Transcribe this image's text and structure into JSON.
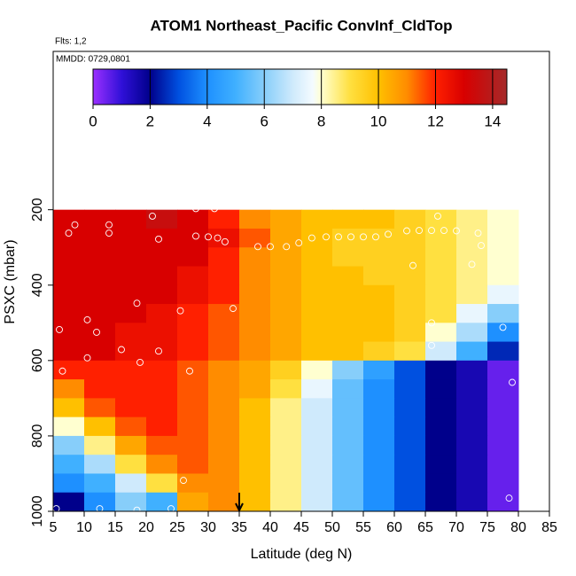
{
  "chart_data": {
    "type": "heatmap",
    "title": "ATOM1 Northeast_Pacific ConvInf_CldTop",
    "annotations": [
      "Flts: 1,2",
      "MMDD: 0729,0801"
    ],
    "x_label": "Latitude (deg N)",
    "y_label": "PSXC (mbar)",
    "xlim": [
      5,
      85
    ],
    "xticks": [
      5,
      10,
      15,
      20,
      25,
      30,
      35,
      40,
      45,
      50,
      55,
      60,
      65,
      70,
      75,
      80,
      85
    ],
    "ylim": [
      1000,
      -220
    ],
    "yticks": [
      200,
      400,
      600,
      800,
      1000
    ],
    "x_edges": [
      5,
      10,
      15,
      20,
      25,
      30,
      35,
      40,
      45,
      50,
      55,
      60,
      65,
      70,
      75,
      80
    ],
    "y_edges": [
      200,
      250,
      300,
      350,
      400,
      450,
      500,
      550,
      600,
      650,
      700,
      750,
      800,
      850,
      900,
      950,
      1000
    ],
    "z": [
      [
        13,
        13,
        13,
        13.5,
        13,
        12,
        11,
        10.5,
        10,
        10,
        10,
        9.5,
        9,
        8.5,
        8
      ],
      [
        13,
        13,
        13,
        13,
        13,
        12.5,
        11.5,
        10.5,
        10,
        9.5,
        9.5,
        9.5,
        9,
        8.5,
        8
      ],
      [
        13,
        13,
        13,
        13,
        13,
        12,
        11,
        10.5,
        10,
        9.5,
        9.5,
        9.5,
        9,
        8.5,
        8
      ],
      [
        13,
        13,
        13,
        13,
        12.5,
        12,
        11,
        10.5,
        10,
        10,
        9.5,
        9.5,
        9,
        8.5,
        8
      ],
      [
        13,
        13,
        13,
        13,
        12.5,
        12,
        11,
        10.5,
        10,
        10,
        10,
        9.5,
        9,
        8.5,
        7.5
      ],
      [
        13,
        13,
        13,
        12.5,
        12,
        11.5,
        11,
        10.5,
        10,
        10,
        10,
        9.5,
        9,
        7.5,
        6
      ],
      [
        13,
        13,
        12.5,
        12.5,
        12,
        11.5,
        11,
        10.5,
        10,
        10,
        10,
        9.5,
        8,
        6.5,
        4
      ],
      [
        13,
        13,
        12.5,
        12.5,
        12,
        11.5,
        11,
        10.5,
        10,
        10,
        9.5,
        9,
        7,
        5,
        2.5
      ],
      [
        12,
        12,
        12,
        12,
        11.5,
        11,
        10.5,
        9.5,
        8,
        6,
        4.5,
        3,
        2,
        1.5,
        0.5
      ],
      [
        11,
        12,
        12,
        12,
        11.5,
        11,
        10.5,
        9,
        7.5,
        5.5,
        4,
        3,
        2,
        1.5,
        0.5
      ],
      [
        10,
        11.5,
        12,
        12,
        11.5,
        11,
        10,
        8.5,
        7,
        5.5,
        4,
        3,
        2,
        1.5,
        0.5
      ],
      [
        8,
        10,
        11.5,
        12,
        11.5,
        11,
        10,
        8.5,
        7,
        5.5,
        4,
        3,
        2,
        1.5,
        0.5
      ],
      [
        6,
        8.5,
        10.5,
        11.5,
        11.5,
        11,
        10,
        8.5,
        7,
        5.5,
        4,
        3,
        2,
        1.5,
        0.5
      ],
      [
        5,
        6.5,
        9,
        11,
        11.5,
        11,
        10,
        8.5,
        7,
        5.5,
        4,
        3,
        2,
        1.5,
        0.5
      ],
      [
        4,
        5,
        7,
        9,
        11,
        11,
        10,
        8.5,
        7,
        5.5,
        4,
        3,
        2,
        1.5,
        0.5
      ],
      [
        2,
        4,
        6,
        5,
        10.5,
        11,
        10,
        8.5,
        7,
        5.5,
        4,
        3,
        2,
        1.5,
        0.5
      ]
    ],
    "colorbar_lim": [
      0,
      14.5
    ],
    "colorbar_ticks": [
      0,
      2,
      4,
      6,
      8,
      10,
      12,
      14
    ],
    "colorscale": [
      [
        0,
        "#9b30ff"
      ],
      [
        1,
        "#3010d8"
      ],
      [
        2,
        "#00008b"
      ],
      [
        3,
        "#0050e0"
      ],
      [
        4,
        "#1e90ff"
      ],
      [
        5,
        "#40b0ff"
      ],
      [
        6,
        "#87cefa"
      ],
      [
        7,
        "#cfeafc"
      ],
      [
        7.7,
        "#f4fbff"
      ],
      [
        8,
        "#ffffd0"
      ],
      [
        9,
        "#ffe040"
      ],
      [
        10,
        "#ffc000"
      ],
      [
        11,
        "#ff8c00"
      ],
      [
        12,
        "#ff2000"
      ],
      [
        13,
        "#d80000"
      ],
      [
        14.5,
        "#a52a2a"
      ]
    ],
    "points": {
      "color": "#ffffff",
      "x": [
        6,
        6.5,
        8.5,
        7.5,
        14,
        14,
        21,
        22,
        28,
        30,
        31.5,
        32.7,
        38,
        40,
        42.6,
        44.6,
        46.7,
        49,
        51,
        53,
        55,
        57,
        59,
        62,
        64,
        66,
        68,
        70,
        73.5,
        74,
        72.5,
        63,
        67,
        10.5,
        12,
        18.5,
        25.5,
        34,
        10.5,
        16,
        19,
        22,
        27,
        66,
        66,
        77.5,
        79,
        26,
        24,
        12.5,
        18.5,
        5.5,
        78.5,
        28,
        31
      ],
      "y": [
        518,
        628,
        240,
        262,
        240,
        262,
        217,
        278,
        270,
        272,
        275,
        285,
        298,
        298,
        298,
        288,
        275,
        272,
        272,
        272,
        272,
        272,
        265,
        256,
        255,
        255,
        255,
        256,
        262,
        295,
        345,
        348,
        217,
        492,
        525,
        448,
        468,
        462,
        593,
        571,
        605,
        575,
        628,
        500,
        560,
        512,
        658,
        918,
        993,
        993,
        997,
        993,
        965,
        197,
        197
      ]
    },
    "marker_x": 35
  }
}
